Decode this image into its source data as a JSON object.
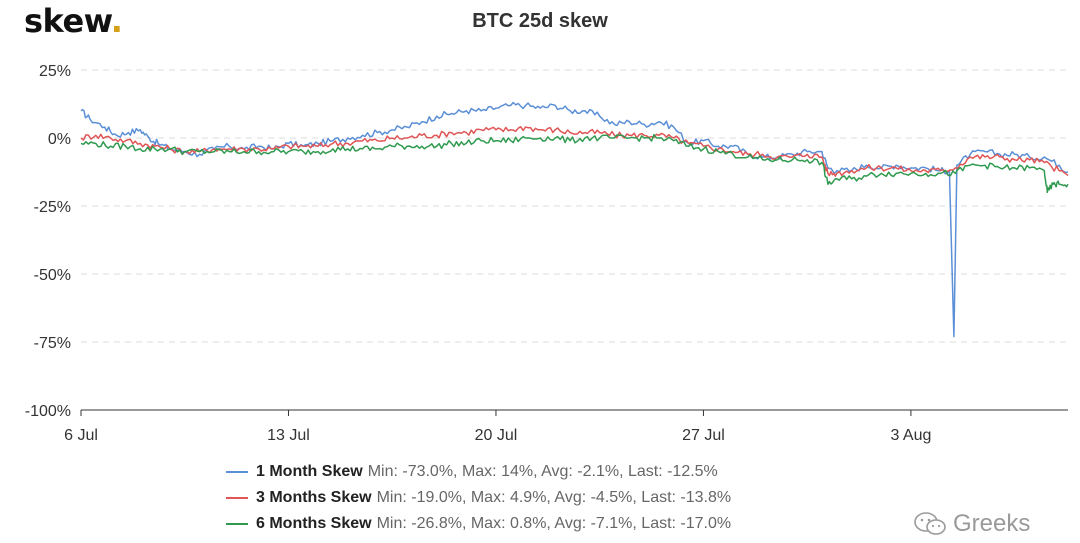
{
  "brand": {
    "name": "skew",
    "dot": "."
  },
  "watermark": {
    "text": "Greeks",
    "icon": "wechat-icon"
  },
  "chart_data": {
    "type": "line",
    "title": "BTC 25d skew",
    "xlabel": "",
    "ylabel": "",
    "y_ticks": [
      "25%",
      "0%",
      "-25%",
      "-50%",
      "-75%",
      "-100%"
    ],
    "ylim": [
      -100,
      25
    ],
    "x_ticks": [
      "6 Jul",
      "13 Jul",
      "20 Jul",
      "27 Jul",
      "3 Aug"
    ],
    "xlim_days": [
      0,
      33.3
    ],
    "grid": "horizontal dashed",
    "legend_position": "bottom",
    "series": [
      {
        "name": "1 Month Skew",
        "color": "#5b8fd6",
        "stats": "Min: -73.0%, Max: 14%, Avg: -2.1%, Last: -12.5%",
        "points": [
          [
            0,
            10
          ],
          [
            0.3,
            7
          ],
          [
            0.8,
            4
          ],
          [
            1.2,
            1
          ],
          [
            1.6,
            2
          ],
          [
            2,
            3
          ],
          [
            2.3,
            0
          ],
          [
            2.6,
            -2
          ],
          [
            3,
            -4
          ],
          [
            3.5,
            -5
          ],
          [
            4,
            -6
          ],
          [
            4.5,
            -4
          ],
          [
            5,
            -3
          ],
          [
            5.5,
            -4
          ],
          [
            6,
            -3
          ],
          [
            6.5,
            -4
          ],
          [
            7,
            -2
          ],
          [
            7.5,
            -3
          ],
          [
            8,
            -2
          ],
          [
            8.5,
            -1
          ],
          [
            9,
            0
          ],
          [
            9.5,
            1
          ],
          [
            10,
            2
          ],
          [
            10.5,
            3
          ],
          [
            11,
            4
          ],
          [
            11.5,
            6
          ],
          [
            12,
            8
          ],
          [
            12.5,
            9
          ],
          [
            13,
            10
          ],
          [
            13.5,
            10
          ],
          [
            14,
            11
          ],
          [
            14.5,
            12
          ],
          [
            15,
            12
          ],
          [
            15.5,
            11
          ],
          [
            16,
            12
          ],
          [
            16.5,
            10
          ],
          [
            17,
            10
          ],
          [
            17.5,
            8
          ],
          [
            18,
            5
          ],
          [
            18.5,
            6
          ],
          [
            19,
            5
          ],
          [
            19.5,
            6
          ],
          [
            20,
            4
          ],
          [
            20.5,
            -2
          ],
          [
            21,
            -1
          ],
          [
            21.5,
            -3
          ],
          [
            22,
            -3
          ],
          [
            22.5,
            -6
          ],
          [
            23,
            -7
          ],
          [
            23.5,
            -7
          ],
          [
            24,
            -6
          ],
          [
            24.5,
            -5
          ],
          [
            25,
            -5
          ],
          [
            25.2,
            -11
          ],
          [
            25.5,
            -12
          ],
          [
            26,
            -12
          ],
          [
            26.5,
            -10
          ],
          [
            27,
            -11
          ],
          [
            27.5,
            -10
          ],
          [
            28,
            -11
          ],
          [
            28.5,
            -11
          ],
          [
            29,
            -12
          ],
          [
            29.3,
            -12
          ],
          [
            29.45,
            -73
          ],
          [
            29.55,
            -10
          ],
          [
            30,
            -6
          ],
          [
            30.5,
            -5
          ],
          [
            31,
            -6
          ],
          [
            31.5,
            -6
          ],
          [
            32,
            -7
          ],
          [
            32.5,
            -7
          ],
          [
            33,
            -10
          ],
          [
            33.3,
            -12.5
          ]
        ]
      },
      {
        "name": "3 Months Skew",
        "color": "#e05555",
        "stats": "Min: -19.0%, Max: 4.9%, Avg: -4.5%, Last: -13.8%",
        "points": [
          [
            0,
            0
          ],
          [
            0.5,
            1
          ],
          [
            1,
            0
          ],
          [
            1.5,
            -1
          ],
          [
            2,
            -2
          ],
          [
            2.5,
            -3
          ],
          [
            3,
            -4
          ],
          [
            3.5,
            -5
          ],
          [
            4,
            -5
          ],
          [
            4.5,
            -4
          ],
          [
            5,
            -4
          ],
          [
            5.5,
            -4
          ],
          [
            6,
            -4
          ],
          [
            6.5,
            -4
          ],
          [
            7,
            -3
          ],
          [
            7.5,
            -3
          ],
          [
            8,
            -3
          ],
          [
            8.5,
            -2
          ],
          [
            9,
            -2
          ],
          [
            9.5,
            -1
          ],
          [
            10,
            -1
          ],
          [
            10.5,
            0
          ],
          [
            11,
            0
          ],
          [
            11.5,
            1
          ],
          [
            12,
            1
          ],
          [
            12.5,
            2
          ],
          [
            13,
            2
          ],
          [
            13.5,
            3
          ],
          [
            14,
            3
          ],
          [
            14.5,
            3
          ],
          [
            15,
            4
          ],
          [
            15.5,
            3
          ],
          [
            16,
            3
          ],
          [
            16.5,
            2
          ],
          [
            17,
            2
          ],
          [
            17.5,
            2
          ],
          [
            18,
            1
          ],
          [
            18.5,
            1
          ],
          [
            19,
            1
          ],
          [
            19.5,
            1
          ],
          [
            20,
            0
          ],
          [
            20.5,
            -2
          ],
          [
            21,
            -3
          ],
          [
            21.5,
            -4
          ],
          [
            22,
            -5
          ],
          [
            22.5,
            -6
          ],
          [
            23,
            -6
          ],
          [
            23.5,
            -7
          ],
          [
            24,
            -7
          ],
          [
            24.5,
            -6
          ],
          [
            25,
            -7
          ],
          [
            25.2,
            -13
          ],
          [
            25.5,
            -13
          ],
          [
            26,
            -12
          ],
          [
            26.5,
            -11
          ],
          [
            27,
            -11
          ],
          [
            27.5,
            -11
          ],
          [
            28,
            -12
          ],
          [
            28.5,
            -12
          ],
          [
            29,
            -12
          ],
          [
            29.5,
            -11
          ],
          [
            30,
            -7
          ],
          [
            30.5,
            -7
          ],
          [
            31,
            -7
          ],
          [
            31.5,
            -8
          ],
          [
            32,
            -8
          ],
          [
            32.5,
            -9
          ],
          [
            33,
            -12
          ],
          [
            33.3,
            -13.8
          ]
        ]
      },
      {
        "name": "6 Months Skew",
        "color": "#2f9a4f",
        "stats": "Min: -26.8%, Max: 0.8%, Avg: -7.1%, Last: -17.0%",
        "points": [
          [
            0,
            -2
          ],
          [
            0.5,
            -2
          ],
          [
            1,
            -3
          ],
          [
            1.5,
            -3
          ],
          [
            2,
            -4
          ],
          [
            2.5,
            -4
          ],
          [
            3,
            -4
          ],
          [
            3.5,
            -5
          ],
          [
            4,
            -5
          ],
          [
            4.5,
            -5
          ],
          [
            5,
            -5
          ],
          [
            5.5,
            -5
          ],
          [
            6,
            -5
          ],
          [
            6.5,
            -5
          ],
          [
            7,
            -5
          ],
          [
            7.5,
            -5
          ],
          [
            8,
            -5
          ],
          [
            8.5,
            -4
          ],
          [
            9,
            -4
          ],
          [
            9.5,
            -4
          ],
          [
            10,
            -4
          ],
          [
            10.5,
            -3
          ],
          [
            11,
            -3
          ],
          [
            11.5,
            -3
          ],
          [
            12,
            -3
          ],
          [
            12.5,
            -2
          ],
          [
            13,
            -2
          ],
          [
            13.5,
            -1
          ],
          [
            14,
            -1
          ],
          [
            14.5,
            -1
          ],
          [
            15,
            0
          ],
          [
            15.5,
            0
          ],
          [
            16,
            0
          ],
          [
            16.5,
            -1
          ],
          [
            17,
            0
          ],
          [
            17.5,
            0
          ],
          [
            18,
            0
          ],
          [
            18.5,
            0
          ],
          [
            19,
            0
          ],
          [
            19.5,
            0
          ],
          [
            20,
            -1
          ],
          [
            20.5,
            -3
          ],
          [
            21,
            -4
          ],
          [
            21.5,
            -5
          ],
          [
            22,
            -6
          ],
          [
            22.5,
            -7
          ],
          [
            23,
            -8
          ],
          [
            23.5,
            -8
          ],
          [
            24,
            -8
          ],
          [
            24.5,
            -8
          ],
          [
            25,
            -9
          ],
          [
            25.2,
            -17
          ],
          [
            25.5,
            -15
          ],
          [
            26,
            -15
          ],
          [
            26.5,
            -14
          ],
          [
            27,
            -13
          ],
          [
            27.5,
            -13
          ],
          [
            28,
            -13
          ],
          [
            28.5,
            -13
          ],
          [
            29,
            -13
          ],
          [
            29.5,
            -13
          ],
          [
            30,
            -10
          ],
          [
            30.5,
            -10
          ],
          [
            31,
            -11
          ],
          [
            31.5,
            -11
          ],
          [
            32,
            -11
          ],
          [
            32.5,
            -12
          ],
          [
            32.6,
            -20
          ],
          [
            32.8,
            -17
          ],
          [
            33,
            -17
          ],
          [
            33.3,
            -17
          ]
        ]
      }
    ]
  }
}
